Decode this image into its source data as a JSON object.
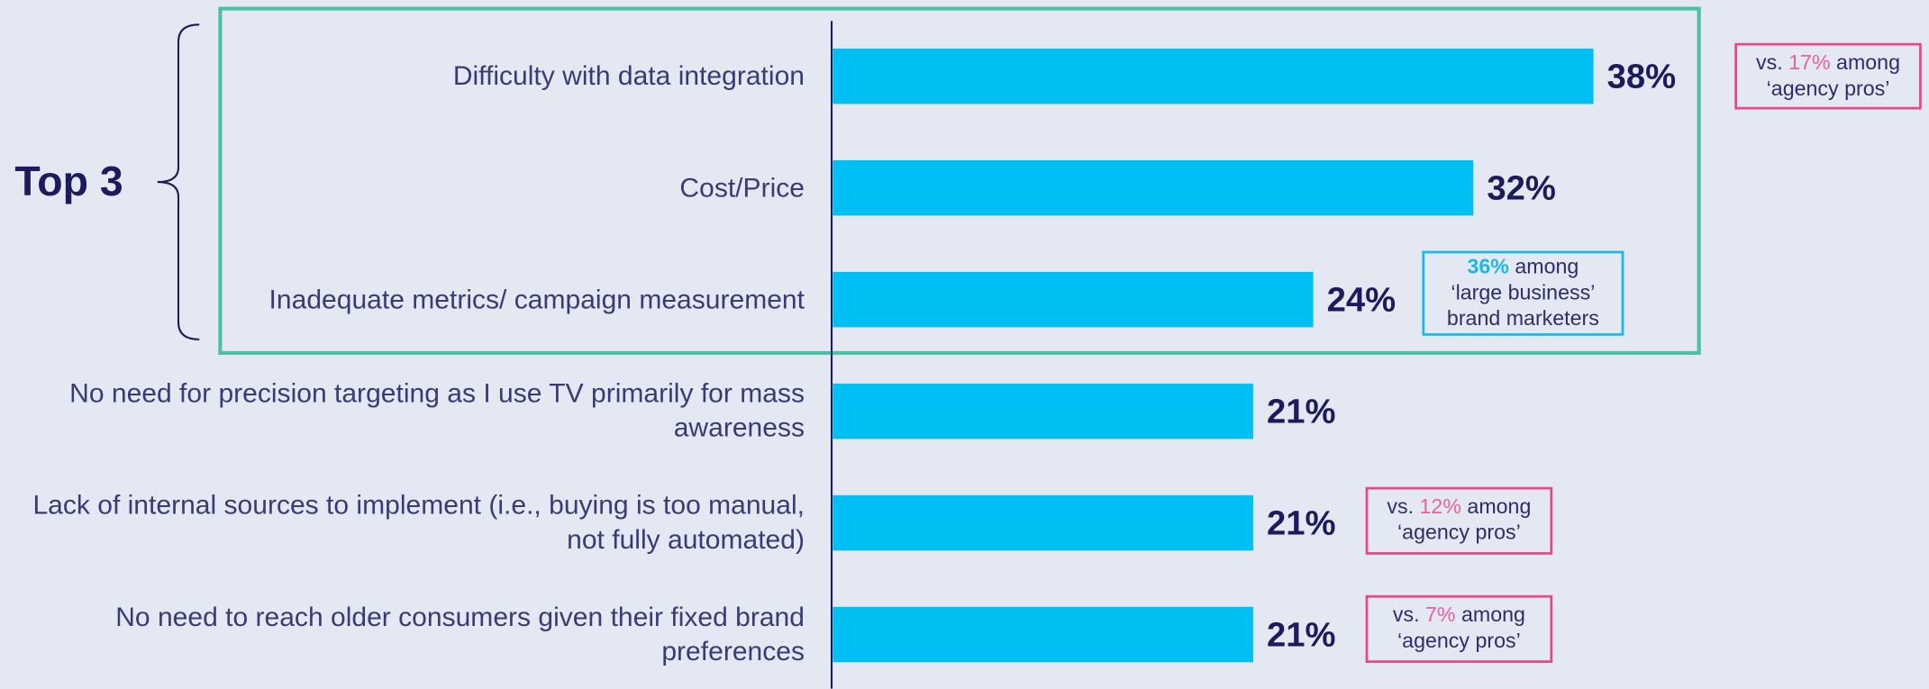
{
  "chart_data": {
    "type": "bar",
    "orientation": "horizontal",
    "categories": [
      "Difficulty with data integration",
      "Cost/Price",
      "Inadequate metrics/ campaign measurement",
      "No need for precision targeting as I use TV primarily for mass awareness",
      "Lack of internal sources to implement (i.e., buying is too manual, not fully automated)",
      "No need to reach older consumers given their fixed brand preferences"
    ],
    "values": [
      38,
      32,
      24,
      21,
      21,
      21
    ],
    "value_labels": [
      "38%",
      "32%",
      "24%",
      "21%",
      "21%",
      "21%"
    ],
    "color": "#00bff2",
    "group_label": "Top 3",
    "callouts": [
      {
        "lines": [
          [
            "vs. ",
            "17%",
            " among"
          ],
          [
            "‘agency pros’"
          ]
        ]
      },
      {
        "lines": [
          [
            "36%",
            " among"
          ],
          [
            "‘large business’"
          ],
          [
            "brand marketers"
          ]
        ]
      },
      {
        "lines": [
          [
            "vs. ",
            "12%",
            " among"
          ],
          [
            "‘agency pros’"
          ]
        ]
      },
      {
        "lines": [
          [
            "vs. ",
            "7%",
            " among"
          ],
          [
            "‘agency pros’"
          ]
        ]
      }
    ]
  }
}
